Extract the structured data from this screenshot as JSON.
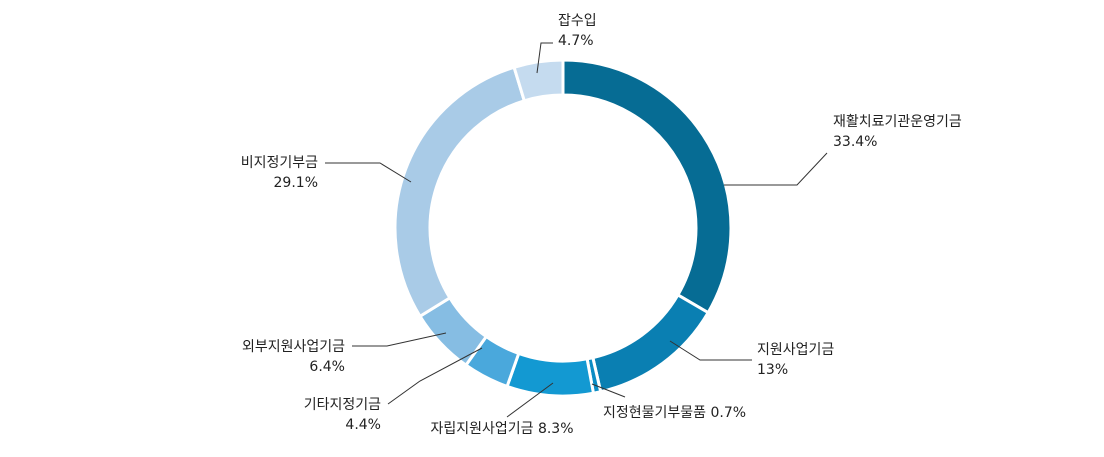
{
  "chart_data": {
    "type": "pie",
    "donut": true,
    "slices": [
      {
        "label": "재활치료기관운영기금",
        "value": 33.4,
        "value_label": "33.4%",
        "color": "#066c94"
      },
      {
        "label": "지원사업기금",
        "value": 13,
        "value_label": "13%",
        "color": "#0a7fb2"
      },
      {
        "label": "지정현물기부물품",
        "value": 0.7,
        "value_label": "0.7%",
        "color": "#0b8cc4"
      },
      {
        "label": "자립지원사업기금",
        "value": 8.3,
        "value_label": "8.3%",
        "color": "#1399d2"
      },
      {
        "label": "기타지정기금",
        "value": 4.4,
        "value_label": "4.4%",
        "color": "#4aa8dc"
      },
      {
        "label": "외부지원사업기금",
        "value": 6.4,
        "value_label": "6.4%",
        "color": "#86bde3"
      },
      {
        "label": "비지정기부금",
        "value": 29.1,
        "value_label": "29.1%",
        "color": "#a9cbe7"
      },
      {
        "label": "잡수입",
        "value": 4.7,
        "value_label": "4.7%",
        "color": "#c5dbef"
      }
    ]
  }
}
